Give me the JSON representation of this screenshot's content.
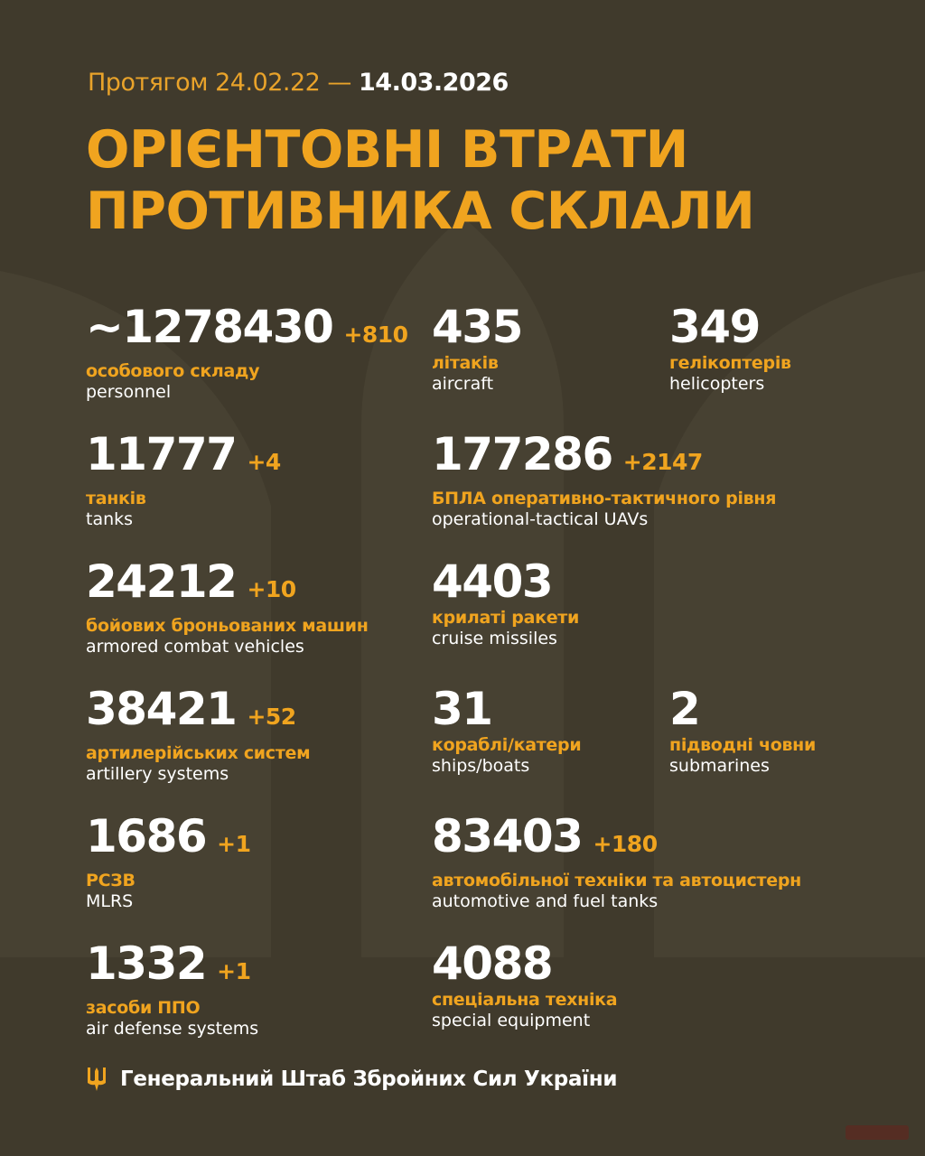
{
  "header": {
    "period_prefix": "Протягом 24.02.22 —",
    "period_end": "14.03.2026",
    "title_line1": "ОРІЄНТОВНІ ВТРАТИ",
    "title_line2": "ПРОТИВНИКА СКЛАЛИ"
  },
  "stats": [
    {
      "value": "~1278430",
      "delta": "+810",
      "ua": "особового складу",
      "en": "personnel"
    },
    {
      "value": "435",
      "delta": "",
      "ua": "літаків",
      "en": "aircraft"
    },
    {
      "value": "349",
      "delta": "",
      "ua": "гелікоптерів",
      "en": "helicopters"
    },
    {
      "value": "11777",
      "delta": "+4",
      "ua": "танків",
      "en": "tanks"
    },
    {
      "value": "177286",
      "delta": "+2147",
      "ua": "БПЛА оперативно-тактичного рівня",
      "en": "operational-tactical UAVs"
    },
    {
      "value": "24212",
      "delta": "+10",
      "ua": "бойових броньованих машин",
      "en": "armored combat vehicles"
    },
    {
      "value": "4403",
      "delta": "",
      "ua": "крилаті ракети",
      "en": "cruise missiles"
    },
    {
      "value": "38421",
      "delta": "+52",
      "ua": "артилерійських систем",
      "en": "artillery systems"
    },
    {
      "value": "31",
      "delta": "",
      "ua": "кораблі/катери",
      "en": "ships/boats"
    },
    {
      "value": "2",
      "delta": "",
      "ua": "підводні човни",
      "en": "submarines"
    },
    {
      "value": "1686",
      "delta": "+1",
      "ua": "РСЗВ",
      "en": "MLRS"
    },
    {
      "value": "83403",
      "delta": "+180",
      "ua": "автомобільної техніки та автоцистерн",
      "en": "automotive and fuel tanks"
    },
    {
      "value": "1332",
      "delta": "+1",
      "ua": "засоби ППО",
      "en": "air defense systems"
    },
    {
      "value": "4088",
      "delta": "",
      "ua": "спеціальна техніка",
      "en": "special equipment"
    }
  ],
  "footer": {
    "text": "Генеральний Штаб Збройних Сил України",
    "icon": "trident-icon"
  },
  "watermark": "Буковина",
  "colors": {
    "background": "#403a2c",
    "accent": "#f0a41f",
    "text": "#ffffff"
  }
}
